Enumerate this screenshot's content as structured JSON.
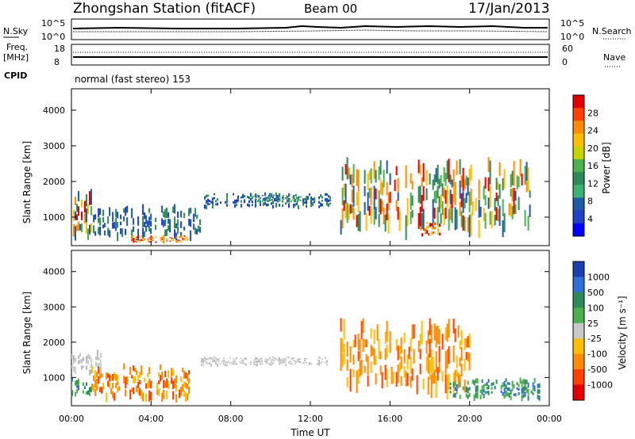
{
  "header": {
    "station": "Zhongshan Station (fitACF)",
    "beam": "Beam 00",
    "date": "17/Jan/2013",
    "mode": "normal (fast stereo) 153"
  },
  "top_panels": {
    "nsky_label": "N.Sky",
    "nsky_ticks": [
      "10^5",
      "10^0"
    ],
    "nsearch_label": "N.Search",
    "nsearch_ticks": [
      "10^5",
      "10^0"
    ],
    "freq_label": "Freq.",
    "freq_unit": "[MHz]",
    "freq_ticks": [
      "18",
      "8"
    ],
    "nave_label": "Nave",
    "nave_ticks": [
      "60",
      "0"
    ],
    "cpid_label": "CPID"
  },
  "chart_data": [
    {
      "type": "heatmap",
      "name": "power",
      "ylabel": "Slant Range [km]",
      "xlabel": "",
      "ylim": [
        200,
        4600
      ],
      "yticks": [
        "1000",
        "2000",
        "3000",
        "4000"
      ],
      "yticks_values": [
        1000,
        2000,
        3000,
        4000
      ],
      "xlim_hours": [
        0,
        24
      ],
      "colorbar": {
        "label": "Power [dB]",
        "ticks": [
          "28",
          "24",
          "20",
          "16",
          "12",
          "8",
          "4"
        ],
        "colors": [
          "#e00000",
          "#ff4000",
          "#ff8c00",
          "#ffbf00",
          "#c8d400",
          "#4cb04c",
          "#2e8b57",
          "#3cb371",
          "#1e5aa8",
          "#2040c8",
          "#0000ff"
        ]
      },
      "patches": [
        {
          "t0": 0.0,
          "t1": 1.0,
          "r0": 300,
          "r1": 1800,
          "level": "mixed"
        },
        {
          "t0": 1.0,
          "t1": 6.5,
          "r0": 250,
          "r1": 1400,
          "level": "low"
        },
        {
          "t0": 3.0,
          "t1": 5.8,
          "r0": 250,
          "r1": 500,
          "level": "high"
        },
        {
          "t0": 6.5,
          "t1": 13.0,
          "r0": 1200,
          "r1": 1700,
          "level": "low"
        },
        {
          "t0": 9.0,
          "t1": 11.5,
          "r0": 1400,
          "r1": 1650,
          "level": "mid"
        },
        {
          "t0": 13.5,
          "t1": 23.0,
          "r0": 300,
          "r1": 2700,
          "level": "mixed"
        },
        {
          "t0": 17.5,
          "t1": 18.5,
          "r0": 400,
          "r1": 900,
          "level": "high"
        }
      ]
    },
    {
      "type": "heatmap",
      "name": "velocity",
      "ylabel": "Slant Range [km]",
      "xlabel": "Time UT",
      "ylim": [
        200,
        4600
      ],
      "yticks": [
        "1000",
        "2000",
        "3000",
        "4000"
      ],
      "yticks_values": [
        1000,
        2000,
        3000,
        4000
      ],
      "xticks": [
        "00:00",
        "04:00",
        "08:00",
        "12:00",
        "16:00",
        "20:00",
        "00:00"
      ],
      "xlim_hours": [
        0,
        24
      ],
      "colorbar": {
        "label": "Velocity [m s⁻¹]",
        "ticks": [
          "1000",
          "500",
          "100",
          "25",
          "-25",
          "-100",
          "-500",
          "-1000"
        ],
        "colors": [
          "#1c3fb0",
          "#2e6fd8",
          "#2e8b57",
          "#4cb04c",
          "#c8c8c8",
          "#ffbf00",
          "#ff8c00",
          "#ff4000",
          "#e00000"
        ]
      },
      "patches": [
        {
          "t0": 0.0,
          "t1": 1.0,
          "r0": 400,
          "r1": 1000,
          "level": "pos"
        },
        {
          "t0": 0.0,
          "t1": 1.5,
          "r0": 1000,
          "r1": 1800,
          "level": "zero"
        },
        {
          "t0": 1.0,
          "t1": 6.0,
          "r0": 250,
          "r1": 1400,
          "level": "neg"
        },
        {
          "t0": 6.5,
          "t1": 13.0,
          "r0": 1300,
          "r1": 1600,
          "level": "zero"
        },
        {
          "t0": 13.5,
          "t1": 20.0,
          "r0": 300,
          "r1": 2700,
          "level": "neg"
        },
        {
          "t0": 19.0,
          "t1": 23.5,
          "r0": 300,
          "r1": 1000,
          "level": "pos"
        }
      ]
    }
  ]
}
